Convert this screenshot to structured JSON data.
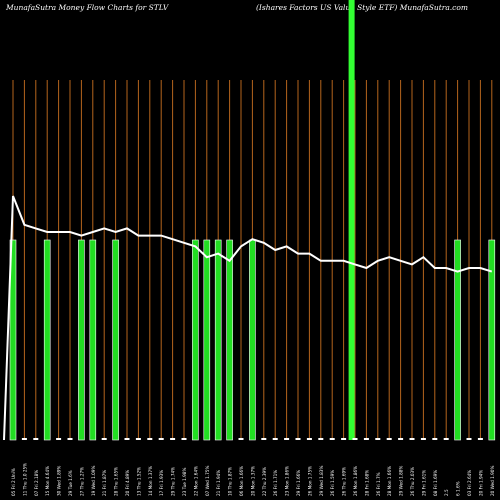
{
  "header": {
    "title_left": "MunafaSutra  Money Flow  Charts for STLV",
    "title_right": "(Ishares Factors US Value   Style    ETF) MunafaSutra.com"
  },
  "colors": {
    "background": "#000000",
    "grid_line": "#b5651d",
    "bar": "#22dd22",
    "bar_border": "#ffffff",
    "price_line": "#ffffff",
    "highlight": "#33ff33",
    "label": "#ffffff"
  },
  "chart_data": {
    "type": "bar",
    "title": "MunafaSutra  Money Flow  Charts for STLV",
    "categories": [
      "05 Fri 2 Uni%",
      "11 Thu 1.0 25%",
      "07 Fri 2.18%",
      "15 Mon 4.64%",
      "30 Wed 1.89%",
      "29 Tue 1.6%",
      "27 Thu 1.27%",
      "19 Wed 1.09%",
      "21 Fri 1.87%",
      "28 Thu 1.65%",
      "20 Fri 4.89%",
      "13 Thu 1.52%",
      "14 Mon 1.37%",
      "17 Fri 1.93%",
      "29 Thu 1.74%",
      "23 Tue 1.98%",
      "22 Mon 1.64%",
      "07 Wed 1.75%",
      "21 Fri 1.94%",
      "10 Thu 1.87%",
      "06 Mon 1.66%",
      "20 Mon 1.37%",
      "22 Thu 2.39%",
      "26 Fri 1.71%",
      "23 Mon 1.86%",
      "29 Fri 1.66%",
      "26 Mon 1.75%",
      "29 Wed 1.83%",
      "26 Fri 1.59%",
      "26 Thu 1.69%",
      "26 Mon 1.86%",
      "28 Fri 1.68%",
      "26 Fri 1.7%",
      "28 Mon 1.66%",
      "29 Wed 1.88%",
      "26 Thu 2.03%",
      "29 Fri 1.61%",
      "08 Fri 1.69%",
      "2.5",
      "6 1.6%",
      "03 Fri 2.64%",
      "20 Fri 1.94%",
      "20 Wed 1.90%"
    ],
    "money_flow": [
      1,
      0,
      0,
      1,
      0,
      0,
      1,
      1,
      0,
      1,
      0,
      0,
      0,
      0,
      0,
      0,
      1,
      1,
      1,
      1,
      0,
      1,
      0,
      0,
      0,
      0,
      0,
      0,
      0,
      0,
      0,
      0,
      0,
      0,
      0,
      0,
      0,
      0,
      0,
      1,
      0,
      0,
      1
    ],
    "price": [
      90,
      82,
      81,
      80,
      80,
      80,
      79,
      80,
      81,
      80,
      81,
      79,
      79,
      79,
      78,
      77,
      76,
      73,
      74,
      72,
      76,
      78,
      77,
      75,
      76,
      74,
      74,
      72,
      72,
      72,
      71,
      70,
      72,
      73,
      72,
      71,
      73,
      70,
      70,
      69,
      70,
      70,
      69
    ],
    "series": [
      {
        "name": "",
        "values": [
          1,
          0,
          0,
          1,
          0,
          0,
          1,
          1,
          0,
          1,
          0,
          0,
          0,
          0,
          0,
          0,
          1,
          1,
          1,
          1,
          0,
          1,
          0,
          0,
          0,
          0,
          0,
          0,
          0,
          0,
          0,
          0,
          0,
          0,
          0,
          0,
          0,
          0,
          0,
          1,
          0,
          0,
          1
        ]
      }
    ],
    "highlight_index": 29,
    "grid": true,
    "xlabel": "",
    "ylabel": ""
  }
}
